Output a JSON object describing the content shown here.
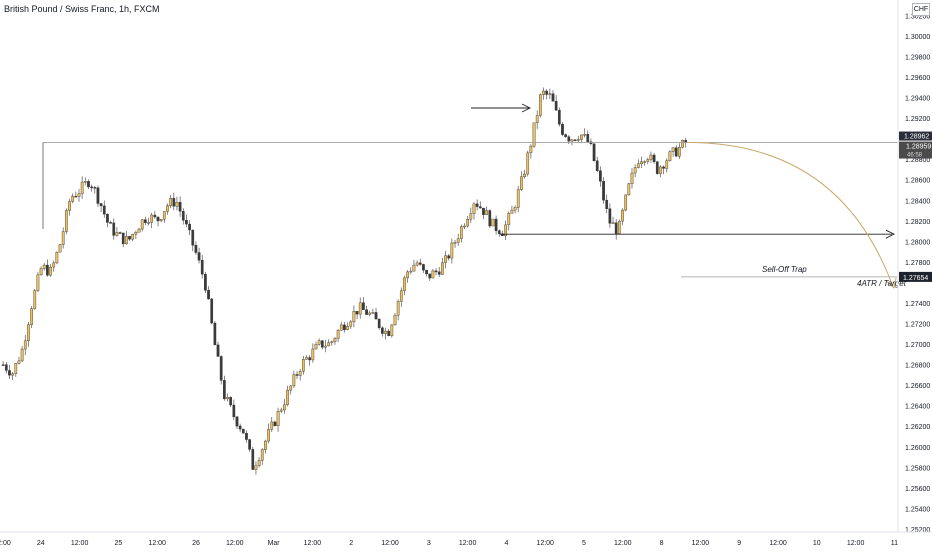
{
  "header": {
    "title": "British Pound / Swiss Franc, 1h, FXCM",
    "currency": "CHF"
  },
  "colors": {
    "up": "#f0c05a",
    "down": "#3a3a3a",
    "level": "#9e9e9e",
    "projection": "#c9a86a",
    "axis_text": "#131722",
    "price_tag_dark": "#4b4b4b",
    "price_tag_blue": "#2a2e39"
  },
  "annotations": {
    "sell_off_label": "Sell-Off Trap",
    "target_label": "4ATR / Target",
    "current_price": "1.28959",
    "countdown": "46:58",
    "level_price": "1.28962",
    "target_price": "1.27654"
  },
  "chart_data": {
    "type": "candlestick",
    "title": "British Pound / Swiss Franc, 1h, FXCM",
    "x_tick_labels": [
      "12:00",
      "24",
      "12:00",
      "25",
      "12:00",
      "26",
      "12:00",
      "Mar",
      "12:00",
      "2",
      "12:00",
      "3",
      "12:00",
      "4",
      "12:00",
      "5",
      "12:00",
      "8",
      "12:00",
      "9",
      "12:00",
      "10",
      "12:00",
      "11"
    ],
    "y_tick_labels": [
      "1.30200",
      "1.30000",
      "1.29800",
      "1.29600",
      "1.29400",
      "1.29200",
      "1.28800",
      "1.28600",
      "1.28400",
      "1.28200",
      "1.28000",
      "1.27800",
      "1.27400",
      "1.27200",
      "1.27000",
      "1.26800",
      "1.26600",
      "1.26400",
      "1.26200",
      "1.26000",
      "1.25800",
      "1.25600",
      "1.25400",
      "1.25200"
    ],
    "ylim": [
      1.2517,
      1.3035
    ],
    "price_path": [
      [
        0,
        1.268
      ],
      [
        1,
        1.2672
      ],
      [
        2,
        1.2695
      ],
      [
        3,
        1.274
      ],
      [
        4,
        1.2775
      ],
      [
        5,
        1.277
      ],
      [
        6,
        1.28
      ],
      [
        7,
        1.2843
      ],
      [
        8,
        1.285
      ],
      [
        9,
        1.286
      ],
      [
        10,
        1.284
      ],
      [
        11,
        1.2815
      ],
      [
        12,
        1.2805
      ],
      [
        13,
        1.28
      ],
      [
        14,
        1.2815
      ],
      [
        15,
        1.2825
      ],
      [
        16,
        1.282
      ],
      [
        17,
        1.2835
      ],
      [
        18,
        1.284
      ],
      [
        19,
        1.2815
      ],
      [
        20,
        1.279
      ],
      [
        21,
        1.276
      ],
      [
        22,
        1.27
      ],
      [
        23,
        1.265
      ],
      [
        24,
        1.263
      ],
      [
        25,
        1.2615
      ],
      [
        26,
        1.258
      ],
      [
        27,
        1.26
      ],
      [
        28,
        1.262
      ],
      [
        29,
        1.264
      ],
      [
        30,
        1.266
      ],
      [
        31,
        1.268
      ],
      [
        32,
        1.269
      ],
      [
        33,
        1.27
      ],
      [
        34,
        1.27
      ],
      [
        35,
        1.2715
      ],
      [
        36,
        1.2725
      ],
      [
        37,
        1.2735
      ],
      [
        38,
        1.273
      ],
      [
        39,
        1.272
      ],
      [
        40,
        1.271
      ],
      [
        41,
        1.274
      ],
      [
        42,
        1.277
      ],
      [
        43,
        1.278
      ],
      [
        44,
        1.2765
      ],
      [
        45,
        1.277
      ],
      [
        46,
        1.278
      ],
      [
        47,
        1.28
      ],
      [
        48,
        1.282
      ],
      [
        49,
        1.284
      ],
      [
        50,
        1.283
      ],
      [
        51,
        1.2815
      ],
      [
        52,
        1.281
      ],
      [
        53,
        1.283
      ],
      [
        54,
        1.286
      ],
      [
        55,
        1.29
      ],
      [
        56,
        1.2945
      ],
      [
        57,
        1.294
      ],
      [
        58,
        1.291
      ],
      [
        59,
        1.29
      ],
      [
        60,
        1.2905
      ],
      [
        61,
        1.2895
      ],
      [
        62,
        1.286
      ],
      [
        63,
        1.282
      ],
      [
        64,
        1.281
      ],
      [
        65,
        1.285
      ],
      [
        66,
        1.288
      ],
      [
        67,
        1.2885
      ],
      [
        68,
        1.287
      ],
      [
        69,
        1.288
      ],
      [
        70,
        1.2888
      ],
      [
        71,
        1.2896
      ]
    ],
    "levels": [
      {
        "price": 1.28962,
        "label": "1.28962"
      },
      {
        "price": 1.2807,
        "label": ""
      },
      {
        "price": 1.27654,
        "label": "1.27654"
      }
    ]
  }
}
